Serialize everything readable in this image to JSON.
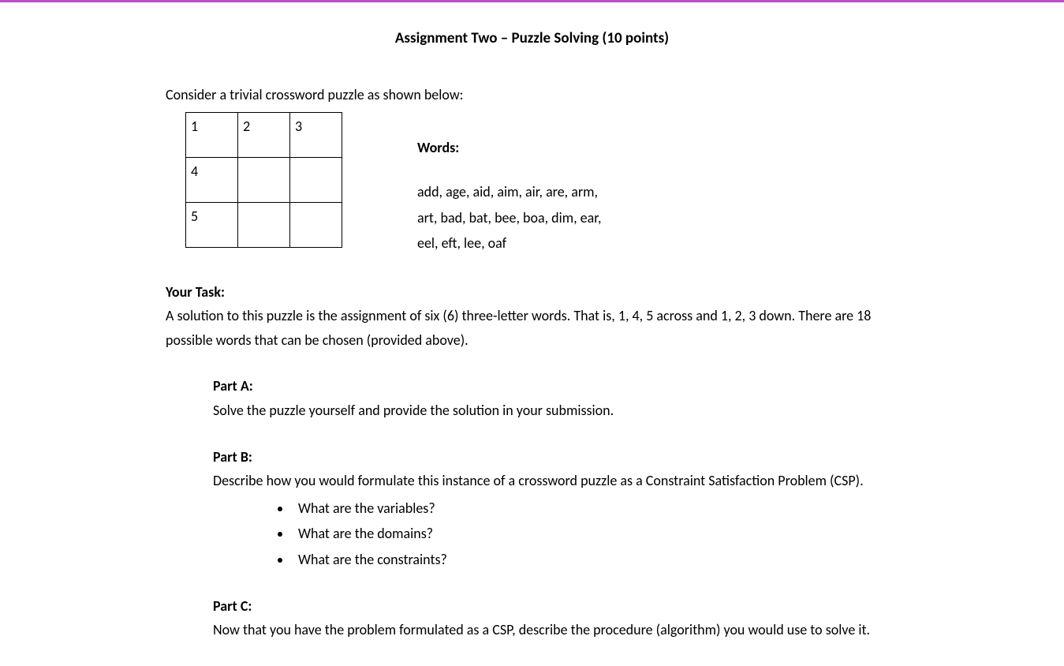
{
  "accent_border_color": "#b94ec9",
  "title": "Assignment Two – Puzzle Solving (10 points)",
  "intro": "Consider a trivial crossword puzzle as shown below:",
  "crossword": {
    "rows": 3,
    "cols": 3,
    "cell_labels": [
      [
        "1",
        "2",
        "3"
      ],
      [
        "4",
        "",
        ""
      ],
      [
        "5",
        "",
        ""
      ]
    ]
  },
  "words_heading": "Words:",
  "words_lines": [
    "add, age, aid, aim, air, are, arm,",
    "art, bad, bat, bee, boa, dim, ear,",
    "eel, eft, lee, oaf"
  ],
  "task_heading": "Your Task:",
  "task_text": "A solution to this puzzle is the assignment of six (6) three-letter words.  That is, 1, 4, 5 across and 1, 2, 3 down.  There are 18 possible words that can be chosen (provided above).",
  "part_a": {
    "heading": "Part A:",
    "text": "Solve the puzzle yourself and provide the solution in your submission."
  },
  "part_b": {
    "heading": "Part B:",
    "text": "Describe how you would formulate this instance of a crossword puzzle as a Constraint Satisfaction Problem (CSP).",
    "bullets": [
      "What are the variables?",
      "What are the domains?",
      "What are the constraints?"
    ]
  },
  "part_c": {
    "heading": "Part C:",
    "text": "Now that you have the problem formulated as a CSP, describe the procedure (algorithm) you would use to solve it."
  }
}
